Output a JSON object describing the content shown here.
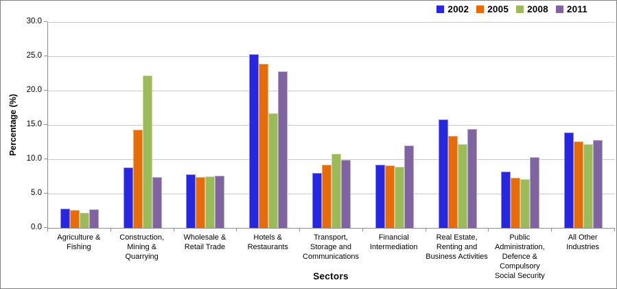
{
  "chart_data": {
    "type": "bar",
    "title": "",
    "xlabel": "Sectors",
    "ylabel": "Percentage (%)",
    "ylim": [
      0,
      30
    ],
    "y_tick_step": 5,
    "y_ticks": [
      "0.0",
      "5.0",
      "10.0",
      "15.0",
      "20.0",
      "25.0",
      "30.0"
    ],
    "grid": true,
    "legend_position": "top-right",
    "categories": [
      [
        "Agriculture &",
        "Fishing"
      ],
      [
        "Construction,",
        "Mining &",
        "Quarrying"
      ],
      [
        "Wholesale &",
        "Retail Trade"
      ],
      [
        "Hotels &",
        "Restaurants"
      ],
      [
        "Transport,",
        "Storage and",
        "Communications"
      ],
      [
        "Financial",
        "Intermediation"
      ],
      [
        "Real Estate,",
        "Renting and",
        "Business Activities"
      ],
      [
        "Public",
        "Administration,",
        "Defence &",
        "Compulsory",
        "Social Security"
      ],
      [
        "All Other",
        "Industries"
      ]
    ],
    "series": [
      {
        "name": "2002",
        "color": "#2727e0",
        "values": [
          2.8,
          8.8,
          7.8,
          25.3,
          8.0,
          9.2,
          15.8,
          8.2,
          13.9
        ]
      },
      {
        "name": "2005",
        "color": "#e66c0a",
        "values": [
          2.6,
          14.3,
          7.4,
          23.9,
          9.2,
          9.1,
          13.4,
          7.3,
          12.6
        ]
      },
      {
        "name": "2008",
        "color": "#9bbb59",
        "values": [
          2.2,
          22.2,
          7.5,
          16.7,
          10.8,
          8.9,
          12.2,
          7.1,
          12.2
        ]
      },
      {
        "name": "2011",
        "color": "#8064a2",
        "values": [
          2.7,
          7.4,
          7.6,
          22.8,
          9.9,
          12.0,
          14.4,
          10.3,
          12.8
        ]
      }
    ],
    "colors": {
      "gridline": "#c9c9c9",
      "axis": "#8c8c8c",
      "text": "#000000"
    }
  }
}
